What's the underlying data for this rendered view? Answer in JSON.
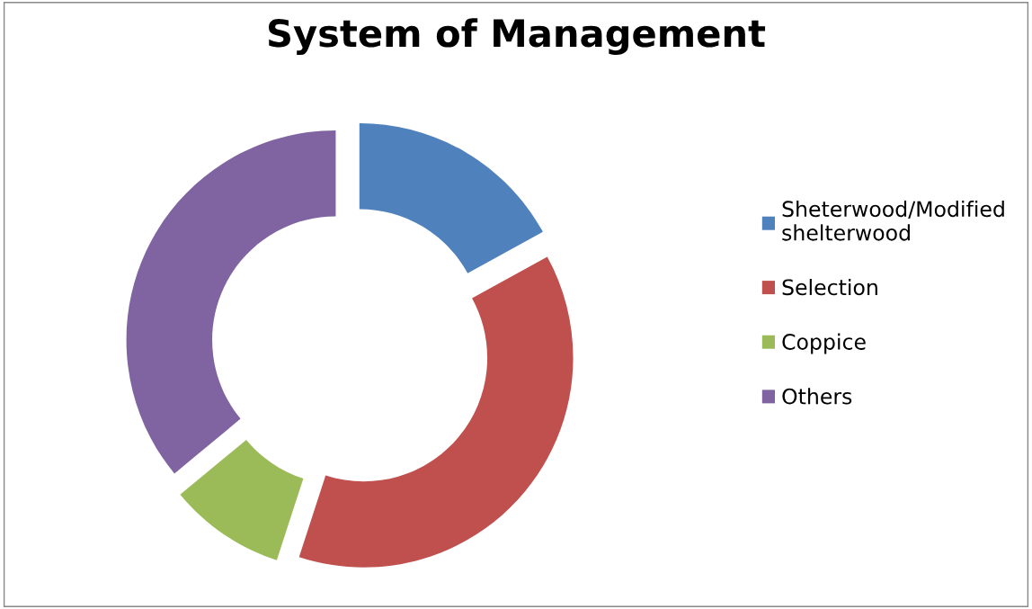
{
  "chart_data": {
    "type": "donut",
    "title": "System of Management",
    "categories": [
      "Sheterwood/Modified shelterwood",
      "Selection",
      "Coppice",
      "Others"
    ],
    "values": [
      17,
      38,
      9,
      36
    ],
    "colors": [
      "#4f81bd",
      "#c0504d",
      "#9bbb59",
      "#8064a2"
    ],
    "legend": "right"
  }
}
